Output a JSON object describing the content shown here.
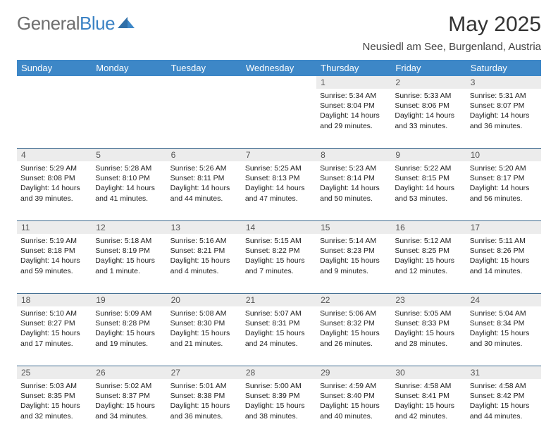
{
  "logo": {
    "word1": "General",
    "word2": "Blue"
  },
  "title": "May 2025",
  "location": "Neusiedl am See, Burgenland, Austria",
  "header_bg": "#3d87c7",
  "daynum_bg": "#ececec",
  "border_color": "#3d6a8f",
  "day_names": [
    "Sunday",
    "Monday",
    "Tuesday",
    "Wednesday",
    "Thursday",
    "Friday",
    "Saturday"
  ],
  "weeks": [
    {
      "nums": [
        "",
        "",
        "",
        "",
        "1",
        "2",
        "3"
      ],
      "cells": [
        null,
        null,
        null,
        null,
        {
          "sunrise": "Sunrise: 5:34 AM",
          "sunset": "Sunset: 8:04 PM",
          "daylight1": "Daylight: 14 hours",
          "daylight2": "and 29 minutes."
        },
        {
          "sunrise": "Sunrise: 5:33 AM",
          "sunset": "Sunset: 8:06 PM",
          "daylight1": "Daylight: 14 hours",
          "daylight2": "and 33 minutes."
        },
        {
          "sunrise": "Sunrise: 5:31 AM",
          "sunset": "Sunset: 8:07 PM",
          "daylight1": "Daylight: 14 hours",
          "daylight2": "and 36 minutes."
        }
      ]
    },
    {
      "nums": [
        "4",
        "5",
        "6",
        "7",
        "8",
        "9",
        "10"
      ],
      "cells": [
        {
          "sunrise": "Sunrise: 5:29 AM",
          "sunset": "Sunset: 8:08 PM",
          "daylight1": "Daylight: 14 hours",
          "daylight2": "and 39 minutes."
        },
        {
          "sunrise": "Sunrise: 5:28 AM",
          "sunset": "Sunset: 8:10 PM",
          "daylight1": "Daylight: 14 hours",
          "daylight2": "and 41 minutes."
        },
        {
          "sunrise": "Sunrise: 5:26 AM",
          "sunset": "Sunset: 8:11 PM",
          "daylight1": "Daylight: 14 hours",
          "daylight2": "and 44 minutes."
        },
        {
          "sunrise": "Sunrise: 5:25 AM",
          "sunset": "Sunset: 8:13 PM",
          "daylight1": "Daylight: 14 hours",
          "daylight2": "and 47 minutes."
        },
        {
          "sunrise": "Sunrise: 5:23 AM",
          "sunset": "Sunset: 8:14 PM",
          "daylight1": "Daylight: 14 hours",
          "daylight2": "and 50 minutes."
        },
        {
          "sunrise": "Sunrise: 5:22 AM",
          "sunset": "Sunset: 8:15 PM",
          "daylight1": "Daylight: 14 hours",
          "daylight2": "and 53 minutes."
        },
        {
          "sunrise": "Sunrise: 5:20 AM",
          "sunset": "Sunset: 8:17 PM",
          "daylight1": "Daylight: 14 hours",
          "daylight2": "and 56 minutes."
        }
      ]
    },
    {
      "nums": [
        "11",
        "12",
        "13",
        "14",
        "15",
        "16",
        "17"
      ],
      "cells": [
        {
          "sunrise": "Sunrise: 5:19 AM",
          "sunset": "Sunset: 8:18 PM",
          "daylight1": "Daylight: 14 hours",
          "daylight2": "and 59 minutes."
        },
        {
          "sunrise": "Sunrise: 5:18 AM",
          "sunset": "Sunset: 8:19 PM",
          "daylight1": "Daylight: 15 hours",
          "daylight2": "and 1 minute."
        },
        {
          "sunrise": "Sunrise: 5:16 AM",
          "sunset": "Sunset: 8:21 PM",
          "daylight1": "Daylight: 15 hours",
          "daylight2": "and 4 minutes."
        },
        {
          "sunrise": "Sunrise: 5:15 AM",
          "sunset": "Sunset: 8:22 PM",
          "daylight1": "Daylight: 15 hours",
          "daylight2": "and 7 minutes."
        },
        {
          "sunrise": "Sunrise: 5:14 AM",
          "sunset": "Sunset: 8:23 PM",
          "daylight1": "Daylight: 15 hours",
          "daylight2": "and 9 minutes."
        },
        {
          "sunrise": "Sunrise: 5:12 AM",
          "sunset": "Sunset: 8:25 PM",
          "daylight1": "Daylight: 15 hours",
          "daylight2": "and 12 minutes."
        },
        {
          "sunrise": "Sunrise: 5:11 AM",
          "sunset": "Sunset: 8:26 PM",
          "daylight1": "Daylight: 15 hours",
          "daylight2": "and 14 minutes."
        }
      ]
    },
    {
      "nums": [
        "18",
        "19",
        "20",
        "21",
        "22",
        "23",
        "24"
      ],
      "cells": [
        {
          "sunrise": "Sunrise: 5:10 AM",
          "sunset": "Sunset: 8:27 PM",
          "daylight1": "Daylight: 15 hours",
          "daylight2": "and 17 minutes."
        },
        {
          "sunrise": "Sunrise: 5:09 AM",
          "sunset": "Sunset: 8:28 PM",
          "daylight1": "Daylight: 15 hours",
          "daylight2": "and 19 minutes."
        },
        {
          "sunrise": "Sunrise: 5:08 AM",
          "sunset": "Sunset: 8:30 PM",
          "daylight1": "Daylight: 15 hours",
          "daylight2": "and 21 minutes."
        },
        {
          "sunrise": "Sunrise: 5:07 AM",
          "sunset": "Sunset: 8:31 PM",
          "daylight1": "Daylight: 15 hours",
          "daylight2": "and 24 minutes."
        },
        {
          "sunrise": "Sunrise: 5:06 AM",
          "sunset": "Sunset: 8:32 PM",
          "daylight1": "Daylight: 15 hours",
          "daylight2": "and 26 minutes."
        },
        {
          "sunrise": "Sunrise: 5:05 AM",
          "sunset": "Sunset: 8:33 PM",
          "daylight1": "Daylight: 15 hours",
          "daylight2": "and 28 minutes."
        },
        {
          "sunrise": "Sunrise: 5:04 AM",
          "sunset": "Sunset: 8:34 PM",
          "daylight1": "Daylight: 15 hours",
          "daylight2": "and 30 minutes."
        }
      ]
    },
    {
      "nums": [
        "25",
        "26",
        "27",
        "28",
        "29",
        "30",
        "31"
      ],
      "cells": [
        {
          "sunrise": "Sunrise: 5:03 AM",
          "sunset": "Sunset: 8:35 PM",
          "daylight1": "Daylight: 15 hours",
          "daylight2": "and 32 minutes."
        },
        {
          "sunrise": "Sunrise: 5:02 AM",
          "sunset": "Sunset: 8:37 PM",
          "daylight1": "Daylight: 15 hours",
          "daylight2": "and 34 minutes."
        },
        {
          "sunrise": "Sunrise: 5:01 AM",
          "sunset": "Sunset: 8:38 PM",
          "daylight1": "Daylight: 15 hours",
          "daylight2": "and 36 minutes."
        },
        {
          "sunrise": "Sunrise: 5:00 AM",
          "sunset": "Sunset: 8:39 PM",
          "daylight1": "Daylight: 15 hours",
          "daylight2": "and 38 minutes."
        },
        {
          "sunrise": "Sunrise: 4:59 AM",
          "sunset": "Sunset: 8:40 PM",
          "daylight1": "Daylight: 15 hours",
          "daylight2": "and 40 minutes."
        },
        {
          "sunrise": "Sunrise: 4:58 AM",
          "sunset": "Sunset: 8:41 PM",
          "daylight1": "Daylight: 15 hours",
          "daylight2": "and 42 minutes."
        },
        {
          "sunrise": "Sunrise: 4:58 AM",
          "sunset": "Sunset: 8:42 PM",
          "daylight1": "Daylight: 15 hours",
          "daylight2": "and 44 minutes."
        }
      ]
    }
  ]
}
